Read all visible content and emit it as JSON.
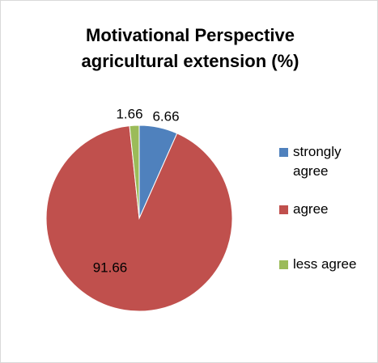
{
  "chart_data": {
    "type": "pie",
    "title": "Motivational Perspective agricultural extension (%)",
    "categories": [
      "strongly agree",
      "agree",
      "less agree"
    ],
    "values": [
      6.66,
      91.66,
      1.66
    ],
    "colors": [
      "#4f81bd",
      "#c0504d",
      "#9bbb59"
    ],
    "legend": "right"
  }
}
